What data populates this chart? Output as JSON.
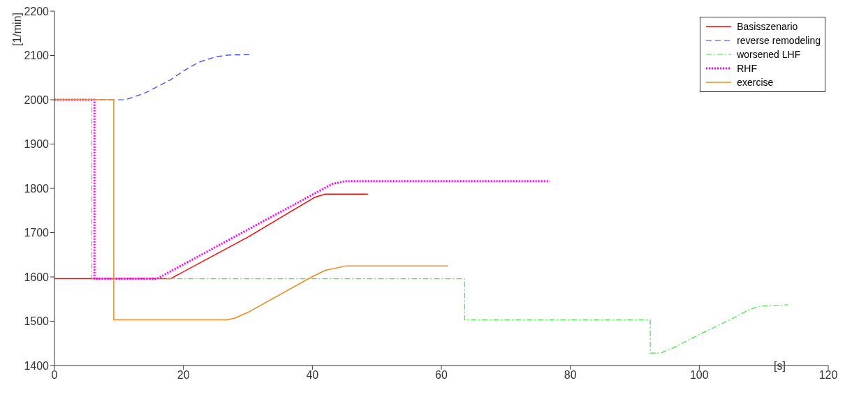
{
  "chart_data": {
    "type": "line",
    "xlabel": "[s]",
    "ylabel": "[1/min]",
    "xlim": [
      0,
      120
    ],
    "xticks": [
      0,
      20,
      40,
      60,
      80,
      100,
      120
    ],
    "ylim": [
      1400,
      2200
    ],
    "yticks": [
      1400,
      1500,
      1600,
      1700,
      1800,
      1900,
      2000,
      2100,
      2200
    ],
    "grid": false,
    "legend": "top right",
    "marker": "none",
    "series": [
      {
        "name": "Basisszenario",
        "color": "#ff0000",
        "line_style": "solid",
        "x": [
          0,
          18,
          30,
          40.4,
          42,
          48.6
        ],
        "values": [
          1596,
          1596,
          1690,
          1780,
          1787,
          1787
        ]
      },
      {
        "name": "reverse remodeling",
        "color": "#3333ff",
        "line_style": "dashed",
        "x": [
          0,
          11,
          14,
          18,
          20,
          22.4,
          25,
          27,
          30.4
        ],
        "values": [
          2000,
          2000,
          2015,
          2045,
          2065,
          2085,
          2097,
          2101,
          2102
        ]
      },
      {
        "name": "worsened LHF",
        "color": "#33ee33",
        "line_style": "dashdot",
        "x": [
          0,
          5.8,
          5.8,
          63.6,
          63.6,
          92.4,
          92.4,
          94,
          96,
          100,
          105,
          108,
          110,
          113.8
        ],
        "values": [
          2000,
          2000,
          1596,
          1596,
          1503,
          1503,
          1428,
          1428,
          1440,
          1470,
          1505,
          1528,
          1535,
          1537
        ]
      },
      {
        "name": "RHF",
        "color": "#ff00ff",
        "line_style": "dotted",
        "x": [
          0,
          6.2,
          6.2,
          15.9,
          43.1,
          45,
          76.8
        ],
        "values": [
          2000,
          2000,
          1596,
          1596,
          1810,
          1816,
          1816
        ]
      },
      {
        "name": "exercise",
        "color": "#ea8a1a",
        "line_style": "solid",
        "x": [
          0,
          9.2,
          9.2,
          26.8,
          28,
          30,
          39.9,
          42,
          45.3,
          61
        ],
        "values": [
          2000,
          2000,
          1503,
          1503,
          1507,
          1520,
          1600,
          1615,
          1625,
          1625
        ]
      }
    ]
  }
}
